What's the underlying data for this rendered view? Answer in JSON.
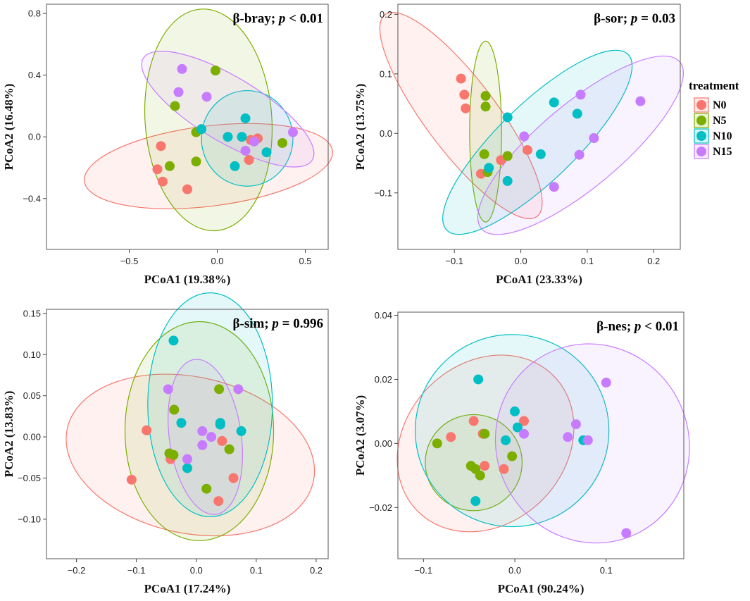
{
  "colors": {
    "N0": "#f8766d",
    "N5": "#7cae00",
    "N10": "#00bfc4",
    "N15": "#c77cff"
  },
  "legend": {
    "title": "treatment",
    "groups": [
      "N0",
      "N5",
      "N10",
      "N15"
    ],
    "placement": "right"
  },
  "chart_data": [
    {
      "type": "scatter",
      "panel": "top-left",
      "annotation": {
        "prefix": "β-bray; ",
        "p": "p",
        "suffix": " < 0.01"
      },
      "xlabel": "PCoA1 (19.38%)",
      "ylabel": "PCoA2 (16.48%)",
      "xlim": [
        -0.97,
        0.63
      ],
      "ylim": [
        -0.73,
        0.86
      ],
      "xticks": [
        -0.5,
        0,
        0.5
      ],
      "xticklabels": [
        "−0.5",
        "0.0",
        "0.5"
      ],
      "yticks": [
        0.8,
        0.4,
        0,
        -0.4
      ],
      "yticklabels": [
        "0.8",
        "0.4",
        "0.0",
        "−0.4"
      ],
      "series": [
        {
          "name": "N0",
          "points": [
            [
              -0.32,
              -0.06
            ],
            [
              -0.34,
              -0.21
            ],
            [
              -0.31,
              -0.29
            ],
            [
              -0.17,
              -0.34
            ],
            [
              0.19,
              -0.02
            ],
            [
              0.23,
              -0.01
            ],
            [
              0.18,
              -0.15
            ]
          ]
        },
        {
          "name": "N5",
          "points": [
            [
              -0.24,
              0.2
            ],
            [
              -0.27,
              -0.19
            ],
            [
              -0.12,
              -0.16
            ],
            [
              -0.12,
              0.03
            ],
            [
              -0.01,
              0.43
            ],
            [
              0.37,
              -0.04
            ]
          ]
        },
        {
          "name": "N10",
          "points": [
            [
              -0.09,
              0.05
            ],
            [
              0.06,
              0.0
            ],
            [
              0.14,
              0.0
            ],
            [
              0.16,
              0.12
            ],
            [
              0.1,
              -0.19
            ],
            [
              0.28,
              -0.1
            ]
          ]
        },
        {
          "name": "N15",
          "points": [
            [
              -0.2,
              0.44
            ],
            [
              -0.22,
              0.29
            ],
            [
              -0.06,
              0.26
            ],
            [
              0.16,
              -0.09
            ],
            [
              0.21,
              -0.03
            ],
            [
              0.43,
              0.03
            ]
          ]
        }
      ],
      "ellipses": [
        {
          "group": "N0",
          "cx": -0.05,
          "cy": -0.19,
          "rx": 0.71,
          "ry": 0.26,
          "angle": 7
        },
        {
          "group": "N5",
          "cx": -0.05,
          "cy": 0.11,
          "rx": 0.36,
          "ry": 0.72,
          "angle": 4
        },
        {
          "group": "N10",
          "cx": 0.17,
          "cy": -0.01,
          "rx": 0.26,
          "ry": 0.31,
          "angle": 0
        },
        {
          "group": "N15",
          "cx": 0.06,
          "cy": 0.18,
          "rx": 0.56,
          "ry": 0.21,
          "angle": -31
        }
      ]
    },
    {
      "type": "scatter",
      "panel": "top-right",
      "annotation": {
        "prefix": "β-sor; ",
        "p": "p",
        "suffix": " = 0.03"
      },
      "xlabel": "PCoA1 (23.33%)",
      "ylabel": "PCoA2 (13.75%)",
      "xlim": [
        -0.185,
        0.24
      ],
      "ylim": [
        -0.195,
        0.217
      ],
      "xticks": [
        -0.1,
        0,
        0.1,
        0.2
      ],
      "xticklabels": [
        "−0.1",
        "0.0",
        "0.1",
        "0.2"
      ],
      "yticks": [
        0.2,
        0.1,
        0,
        -0.1
      ],
      "yticklabels": [
        "0.2",
        "0.1",
        "0.0",
        "−0.1"
      ],
      "series": [
        {
          "name": "N0",
          "points": [
            [
              -0.09,
              0.092
            ],
            [
              -0.085,
              0.065
            ],
            [
              -0.083,
              0.042
            ],
            [
              -0.06,
              -0.068
            ],
            [
              -0.03,
              -0.045
            ],
            [
              0.01,
              -0.028
            ]
          ]
        },
        {
          "name": "N5",
          "points": [
            [
              -0.053,
              0.063
            ],
            [
              -0.053,
              0.045
            ],
            [
              -0.055,
              -0.035
            ],
            [
              -0.05,
              -0.065
            ],
            [
              -0.02,
              -0.038
            ]
          ]
        },
        {
          "name": "N10",
          "points": [
            [
              -0.048,
              -0.058
            ],
            [
              -0.02,
              0.027
            ],
            [
              -0.02,
              -0.08
            ],
            [
              0.03,
              -0.035
            ],
            [
              0.05,
              0.052
            ],
            [
              0.085,
              0.033
            ]
          ]
        },
        {
          "name": "N15",
          "points": [
            [
              0.005,
              -0.005
            ],
            [
              0.09,
              0.065
            ],
            [
              0.11,
              -0.008
            ],
            [
              0.088,
              -0.036
            ],
            [
              0.05,
              -0.09
            ],
            [
              0.18,
              0.054
            ]
          ]
        }
      ],
      "ellipses": [
        {
          "group": "N0",
          "cx": -0.09,
          "cy": 0.03,
          "rx": 0.19,
          "ry": 0.06,
          "angle": -53
        },
        {
          "group": "N5",
          "cx": -0.053,
          "cy": 0.003,
          "rx": 0.024,
          "ry": 0.152,
          "angle": 0
        },
        {
          "group": "N10",
          "cx": 0.025,
          "cy": -0.015,
          "rx": 0.19,
          "ry": 0.065,
          "angle": 44
        },
        {
          "group": "N15",
          "cx": 0.09,
          "cy": -0.02,
          "rx": 0.195,
          "ry": 0.07,
          "angle": 40
        }
      ]
    },
    {
      "type": "scatter",
      "panel": "bottom-left",
      "annotation": {
        "prefix": "β-sim; ",
        "p": "p",
        "suffix": " = 0.996"
      },
      "xlabel": "PCoA1 (17.24%)",
      "ylabel": "PCoA2 (13.83%)",
      "xlim": [
        -0.25,
        0.22
      ],
      "ylim": [
        -0.148,
        0.155
      ],
      "xticks": [
        -0.2,
        -0.1,
        0,
        0.1,
        0.2
      ],
      "xticklabels": [
        "−0.2",
        "−0.1",
        "0.0",
        "0.1",
        "0.2"
      ],
      "yticks": [
        0.15,
        0.1,
        0.05,
        0,
        -0.05,
        -0.1
      ],
      "yticklabels": [
        "0.15",
        "0.10",
        "0.05",
        "0.00",
        "−0.05",
        "−0.10"
      ],
      "series": [
        {
          "name": "N0",
          "points": [
            [
              -0.108,
              -0.052
            ],
            [
              -0.083,
              0.008
            ],
            [
              -0.043,
              -0.027
            ],
            [
              0.043,
              -0.005
            ],
            [
              0.062,
              -0.05
            ],
            [
              0.037,
              -0.078
            ]
          ]
        },
        {
          "name": "N5",
          "points": [
            [
              -0.045,
              -0.02
            ],
            [
              -0.037,
              0.033
            ],
            [
              -0.038,
              -0.022
            ],
            [
              0.038,
              0.058
            ],
            [
              0.055,
              -0.015
            ],
            [
              0.017,
              -0.063
            ]
          ]
        },
        {
          "name": "N10",
          "points": [
            [
              -0.038,
              0.117
            ],
            [
              -0.025,
              0.017
            ],
            [
              -0.015,
              -0.038
            ],
            [
              0.04,
              0.017
            ],
            [
              0.04,
              0.015
            ],
            [
              0.075,
              0.007
            ]
          ]
        },
        {
          "name": "N15",
          "points": [
            [
              -0.047,
              0.058
            ],
            [
              -0.015,
              -0.027
            ],
            [
              0.01,
              0.007
            ],
            [
              0.01,
              -0.01
            ],
            [
              0.025,
              0.0
            ],
            [
              0.07,
              0.058
            ]
          ]
        }
      ],
      "ellipses": [
        {
          "group": "N0",
          "cx": -0.01,
          "cy": -0.022,
          "rx": 0.21,
          "ry": 0.095,
          "angle": -12
        },
        {
          "group": "N5",
          "cx": 0.005,
          "cy": 0.007,
          "rx": 0.124,
          "ry": 0.133,
          "angle": 0
        },
        {
          "group": "N10",
          "cx": 0.023,
          "cy": 0.039,
          "rx": 0.104,
          "ry": 0.136,
          "angle": 0
        },
        {
          "group": "N15",
          "cx": 0.015,
          "cy": 0.0,
          "rx": 0.06,
          "ry": 0.095,
          "angle": 8
        }
      ]
    },
    {
      "type": "scatter",
      "panel": "bottom-right",
      "annotation": {
        "prefix": "β-nes; ",
        "p": "p",
        "suffix": " < 0.01"
      },
      "xlabel": "PCoA1 (90.24%)",
      "ylabel": "PCoA2 (3.07%)",
      "xlim": [
        -0.128,
        0.185
      ],
      "ylim": [
        -0.036,
        0.041
      ],
      "xticks": [
        -0.1,
        0,
        0.1
      ],
      "xticklabels": [
        "−0.1",
        "0.0",
        "0.1"
      ],
      "yticks": [
        0.04,
        0.02,
        0,
        -0.02
      ],
      "yticklabels": [
        "0.04",
        "0.02",
        "0.00",
        "−0.02"
      ],
      "series": [
        {
          "name": "N0",
          "points": [
            [
              -0.07,
              0.002
            ],
            [
              -0.045,
              0.007
            ],
            [
              -0.035,
              0.003
            ],
            [
              -0.033,
              -0.007
            ],
            [
              -0.012,
              -0.008
            ],
            [
              0.01,
              0.007
            ]
          ]
        },
        {
          "name": "N5",
          "points": [
            [
              -0.085,
              0.0
            ],
            [
              -0.048,
              -0.007
            ],
            [
              -0.043,
              -0.008
            ],
            [
              -0.038,
              -0.01
            ],
            [
              -0.033,
              0.003
            ],
            [
              -0.003,
              -0.004
            ]
          ]
        },
        {
          "name": "N10",
          "points": [
            [
              -0.04,
              0.02
            ],
            [
              -0.043,
              -0.018
            ],
            [
              -0.01,
              0.001
            ],
            [
              0.0,
              0.01
            ],
            [
              0.003,
              0.005
            ],
            [
              0.075,
              0.001
            ]
          ]
        },
        {
          "name": "N15",
          "points": [
            [
              0.01,
              0.003
            ],
            [
              0.058,
              0.002
            ],
            [
              0.067,
              0.006
            ],
            [
              0.08,
              0.001
            ],
            [
              0.1,
              0.019
            ],
            [
              0.122,
              -0.028
            ]
          ]
        }
      ],
      "ellipses": [
        {
          "group": "N0",
          "cx": -0.032,
          "cy": 0.0,
          "rx": 0.105,
          "ry": 0.025,
          "angle": 45
        },
        {
          "group": "N5",
          "cx": -0.045,
          "cy": -0.006,
          "rx": 0.053,
          "ry": 0.015,
          "angle": 0
        },
        {
          "group": "N10",
          "cx": -0.003,
          "cy": 0.004,
          "rx": 0.106,
          "ry": 0.03,
          "angle": 2
        },
        {
          "group": "N15",
          "cx": 0.085,
          "cy": 0.0,
          "rx": 0.11,
          "ry": 0.03,
          "angle": -62
        }
      ]
    }
  ]
}
